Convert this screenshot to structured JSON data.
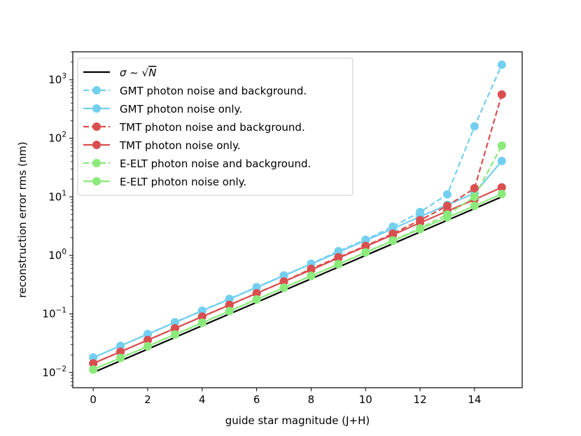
{
  "chart_data": {
    "type": "line",
    "title": "",
    "xlabel": "guide star magnitude (J+H)",
    "ylabel": "reconstruction error rms (nm)",
    "xlim": [
      -0.75,
      15.75
    ],
    "ylim": [
      0.0055,
      3000
    ],
    "yscale": "log",
    "grid": false,
    "legend_position": "top-left",
    "x_ticks": [
      0,
      2,
      4,
      6,
      8,
      10,
      12,
      14
    ],
    "x_tick_labels": [
      "0",
      "2",
      "4",
      "6",
      "8",
      "10",
      "12",
      "14"
    ],
    "y_ticks": [
      0.01,
      0.1,
      1,
      10,
      100,
      1000
    ],
    "y_tick_labels": [
      {
        "base": "10",
        "exp": "−2"
      },
      {
        "base": "10",
        "exp": "−1"
      },
      {
        "base": "10",
        "exp": "0"
      },
      {
        "base": "10",
        "exp": "1"
      },
      {
        "base": "10",
        "exp": "2"
      },
      {
        "base": "10",
        "exp": "3"
      }
    ],
    "x": [
      0,
      1,
      2,
      3,
      4,
      5,
      6,
      7,
      8,
      9,
      10,
      11,
      12,
      13,
      14,
      15
    ],
    "series": [
      {
        "name": "σ ~ √N",
        "legend": {
          "prefix": "σ ~ ",
          "radical": "√",
          "radicand": "N"
        },
        "color": "#000000",
        "dashed": false,
        "markers": false,
        "values": [
          0.01,
          0.0158,
          0.0251,
          0.0398,
          0.0631,
          0.1,
          0.158,
          0.251,
          0.398,
          0.631,
          1.0,
          1.58,
          2.51,
          3.98,
          6.31,
          10.0
        ]
      },
      {
        "name": "GMT photon noise and background.",
        "color": "#73CFF0",
        "dashed": true,
        "markers": true,
        "values": [
          0.018,
          0.0285,
          0.0455,
          0.0722,
          0.114,
          0.181,
          0.287,
          0.455,
          0.72,
          1.18,
          1.85,
          3.1,
          5.5,
          11.0,
          160,
          1800
        ]
      },
      {
        "name": "GMT photon noise only.",
        "color": "#73CFF0",
        "dashed": false,
        "markers": true,
        "values": [
          0.018,
          0.0285,
          0.045,
          0.0715,
          0.113,
          0.179,
          0.284,
          0.45,
          0.714,
          1.13,
          1.8,
          2.85,
          4.6,
          7.3,
          11.5,
          41
        ]
      },
      {
        "name": "TMT photon noise and background.",
        "color": "#D94F4F",
        "dashed": true,
        "markers": true,
        "values": [
          0.0143,
          0.0226,
          0.0358,
          0.0568,
          0.09,
          0.143,
          0.226,
          0.358,
          0.59,
          0.93,
          1.45,
          2.35,
          4.0,
          7.0,
          14.0,
          560
        ]
      },
      {
        "name": "TMT photon noise only.",
        "color": "#D94F4F",
        "dashed": false,
        "markers": true,
        "values": [
          0.0143,
          0.0226,
          0.0358,
          0.0567,
          0.09,
          0.142,
          0.225,
          0.357,
          0.566,
          0.9,
          1.42,
          2.25,
          3.6,
          5.7,
          9.0,
          14.5
        ]
      },
      {
        "name": "E-ELT photon noise and background.",
        "color": "#8AEA7A",
        "dashed": true,
        "markers": true,
        "values": [
          0.0112,
          0.0177,
          0.0281,
          0.0446,
          0.0707,
          0.112,
          0.177,
          0.281,
          0.448,
          0.71,
          1.13,
          1.8,
          2.9,
          5.0,
          10.0,
          75
        ]
      },
      {
        "name": "E-ELT photon noise only.",
        "color": "#8AEA7A",
        "dashed": false,
        "markers": true,
        "values": [
          0.0112,
          0.0177,
          0.0281,
          0.0445,
          0.0706,
          0.112,
          0.177,
          0.28,
          0.445,
          0.705,
          1.12,
          1.77,
          2.8,
          4.45,
          7.0,
          11.2
        ]
      }
    ]
  }
}
